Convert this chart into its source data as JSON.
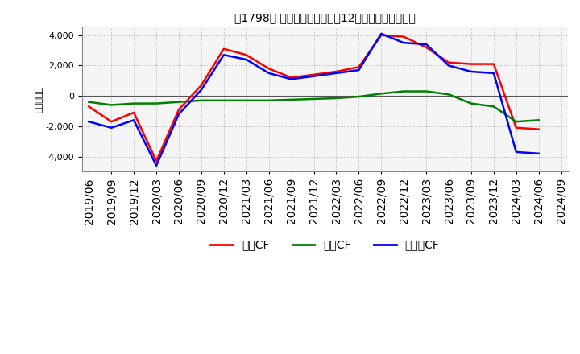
{
  "title": "　1798、 キャッシュフローの12か月移動合計の推移",
  "title_prefix": "[1798]",
  "title_main": "キャッシュフローの12か月移動合計の推移",
  "ylabel": "（百万円）",
  "ylim": [
    -5000,
    4500
  ],
  "yticks": [
    -4000,
    -2000,
    0,
    2000,
    4000
  ],
  "legend_labels": [
    "営業CF",
    "投資CF",
    "フリーCF"
  ],
  "line_colors": [
    "#ff0000",
    "#008000",
    "#0000ff"
  ],
  "dates": [
    "2019/06",
    "2019/09",
    "2019/12",
    "2020/03",
    "2020/06",
    "2020/09",
    "2020/12",
    "2021/03",
    "2021/06",
    "2021/09",
    "2021/12",
    "2022/03",
    "2022/06",
    "2022/09",
    "2022/12",
    "2023/03",
    "2023/06",
    "2023/09",
    "2023/12",
    "2024/03",
    "2024/06",
    "2024/09"
  ],
  "operating_cf": [
    -700,
    -1700,
    -1100,
    -4300,
    -900,
    700,
    3100,
    2700,
    1800,
    1200,
    1400,
    1600,
    1900,
    4000,
    3900,
    3200,
    2200,
    2100,
    2100,
    -2100,
    -2200,
    null
  ],
  "investing_cf": [
    -400,
    -600,
    -500,
    -500,
    -400,
    -300,
    -300,
    -300,
    -300,
    -250,
    -200,
    -150,
    -50,
    150,
    300,
    300,
    100,
    -500,
    -700,
    -1700,
    -1600,
    null
  ],
  "free_cf": [
    -1700,
    -2100,
    -1600,
    -4600,
    -1200,
    400,
    2700,
    2400,
    1500,
    1100,
    1300,
    1500,
    1700,
    4100,
    3500,
    3400,
    2000,
    1600,
    1500,
    -3700,
    -3800,
    null
  ],
  "background_color": "#ffffff",
  "grid_color": "#aaaaaa",
  "plot_bg_color": "#f5f5f5"
}
